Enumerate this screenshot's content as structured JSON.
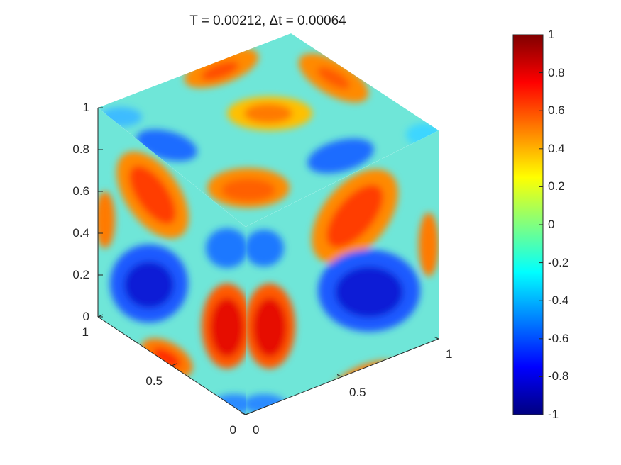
{
  "chart_data": {
    "type": "heatmap",
    "title": "T = 0.00212,  Δt = 0.00064",
    "xlabel": "",
    "ylabel": "",
    "zlabel": "",
    "axes": {
      "z_ticks": [
        "0",
        "0.2",
        "0.4",
        "0.6",
        "0.8",
        "1"
      ],
      "x_ticks": [
        "0",
        "0.5",
        "1"
      ],
      "y_ticks": [
        "0",
        "0.5",
        "1"
      ],
      "xlim": [
        0,
        1
      ],
      "ylim": [
        0,
        1
      ],
      "zlim": [
        0,
        1
      ]
    },
    "colorbar": {
      "colormap": "jet",
      "range": [
        -1,
        1
      ],
      "ticks": [
        "1",
        "0.8",
        "0.6",
        "0.4",
        "0.2",
        "0",
        "-0.2",
        "-0.4",
        "-0.6",
        "-0.8",
        "-1"
      ]
    },
    "faces": [
      "top",
      "left",
      "right"
    ],
    "grid": false
  }
}
